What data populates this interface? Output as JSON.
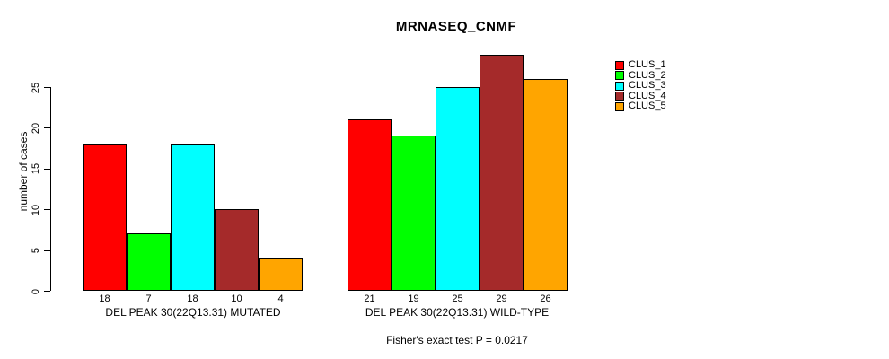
{
  "chart_data": {
    "type": "bar",
    "title": "MRNASEQ_CNMF",
    "ylabel": "number of cases",
    "yticks": [
      0,
      5,
      10,
      15,
      20,
      25
    ],
    "ylim": [
      0,
      25
    ],
    "grid": false,
    "legend_position": "right",
    "clusters": [
      {
        "label": "CLUS_1",
        "color": "#FF0000"
      },
      {
        "label": "CLUS_2",
        "color": "#00FF00"
      },
      {
        "label": "CLUS_3",
        "color": "#00FFFF"
      },
      {
        "label": "CLUS_4",
        "color": "#A52A2A"
      },
      {
        "label": "CLUS_5",
        "color": "#FFA500"
      }
    ],
    "groups": [
      {
        "label": "DEL PEAK 30(22Q13.31) MUTATED",
        "values": [
          18,
          7,
          18,
          10,
          4
        ]
      },
      {
        "label": "DEL PEAK 30(22Q13.31) WILD-TYPE",
        "values": [
          21,
          19,
          25,
          29,
          26
        ]
      }
    ],
    "footnote": "Fisher's exact test P = 0.0217"
  }
}
